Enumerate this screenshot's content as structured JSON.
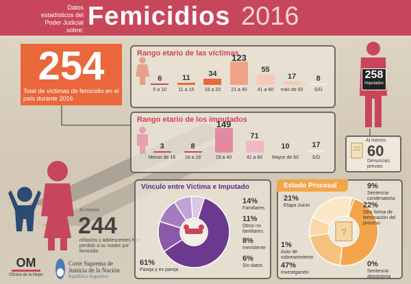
{
  "header": {
    "subtitle_lines": [
      "Datos",
      "estadísticos del",
      "Poder Judicial",
      "sobre:"
    ],
    "title": "Femicidios",
    "year": "2016"
  },
  "total": {
    "number": "254",
    "text": "Total de víctimas de femicidio en el país durante 2016"
  },
  "imputados": {
    "number": "258",
    "label": "Imputados"
  },
  "denuncias": {
    "prefix": "Al menos",
    "number": "60",
    "label": "Denuncias previas"
  },
  "ninos": {
    "prefix": "Al menos",
    "number": "244",
    "text": "niñas/os y adolescentes han perdido a su madre por femicidio"
  },
  "chart_data": [
    {
      "type": "bar",
      "title": "Rango etario de las víctimas",
      "categories": [
        "0 a 10",
        "11 a 15",
        "16 a 20",
        "21 a 40",
        "41 a 60",
        "más de 60",
        "S/D"
      ],
      "values": [
        6,
        11,
        34,
        123,
        55,
        17,
        8
      ]
    },
    {
      "type": "bar",
      "title": "Rango etario de los imputados",
      "categories": [
        "Menor de 16",
        "16 a 18",
        "19 a 40",
        "41 a 60",
        "Mayor de 60",
        "S/D"
      ],
      "values": [
        3,
        8,
        149,
        71,
        10,
        17
      ]
    },
    {
      "type": "pie",
      "title": "Vínculo entre Víctima e Imputado",
      "slices": [
        {
          "pct": "61%",
          "value": 61,
          "label": "Pareja y ex pareja",
          "color": "#6b3a8e"
        },
        {
          "pct": "14%",
          "value": 14,
          "label": "Familiares",
          "color": "#8a5aa8"
        },
        {
          "pct": "11%",
          "value": 11,
          "label": "Otros no familiares",
          "color": "#a47cbe"
        },
        {
          "pct": "8%",
          "value": 8,
          "label": "Inexistente",
          "color": "#c1a3d3"
        },
        {
          "pct": "6%",
          "value": 6,
          "label": "Sin datos",
          "color": "#d9c7e4"
        }
      ]
    },
    {
      "type": "pie",
      "title": "Estado Procesal",
      "slices": [
        {
          "pct": "47%",
          "value": 47,
          "label": "Investigación",
          "color": "#f2a54a"
        },
        {
          "pct": "21%",
          "value": 21,
          "label": "Etapa Juicio",
          "color": "#f5c27d"
        },
        {
          "pct": "9%",
          "value": 9,
          "label": "Sentencia condenatoria",
          "color": "#f8d7a8"
        },
        {
          "pct": "22%",
          "value": 22,
          "label": "Otra forma de terminación del proceso",
          "color": "#fbe6c8"
        },
        {
          "pct": "1%",
          "value": 1,
          "label": "Auto de sobreseimiento",
          "color": "#e48a2c"
        },
        {
          "pct": "0%",
          "value": 0,
          "label": "Sentencia absolutoria",
          "color": "#d07020"
        }
      ]
    }
  ],
  "footer": {
    "om_logo": "OM",
    "om_label": "Oficina de la Mujer",
    "csjn_line1": "Corte Suprema de",
    "csjn_line2": "Justicia de la Nación",
    "csjn_line3": "República Argentina"
  },
  "colors": {
    "red": "#c8465b",
    "orange": "#e9673a",
    "purple": "#6b3a8e",
    "amber": "#f2a54a"
  }
}
